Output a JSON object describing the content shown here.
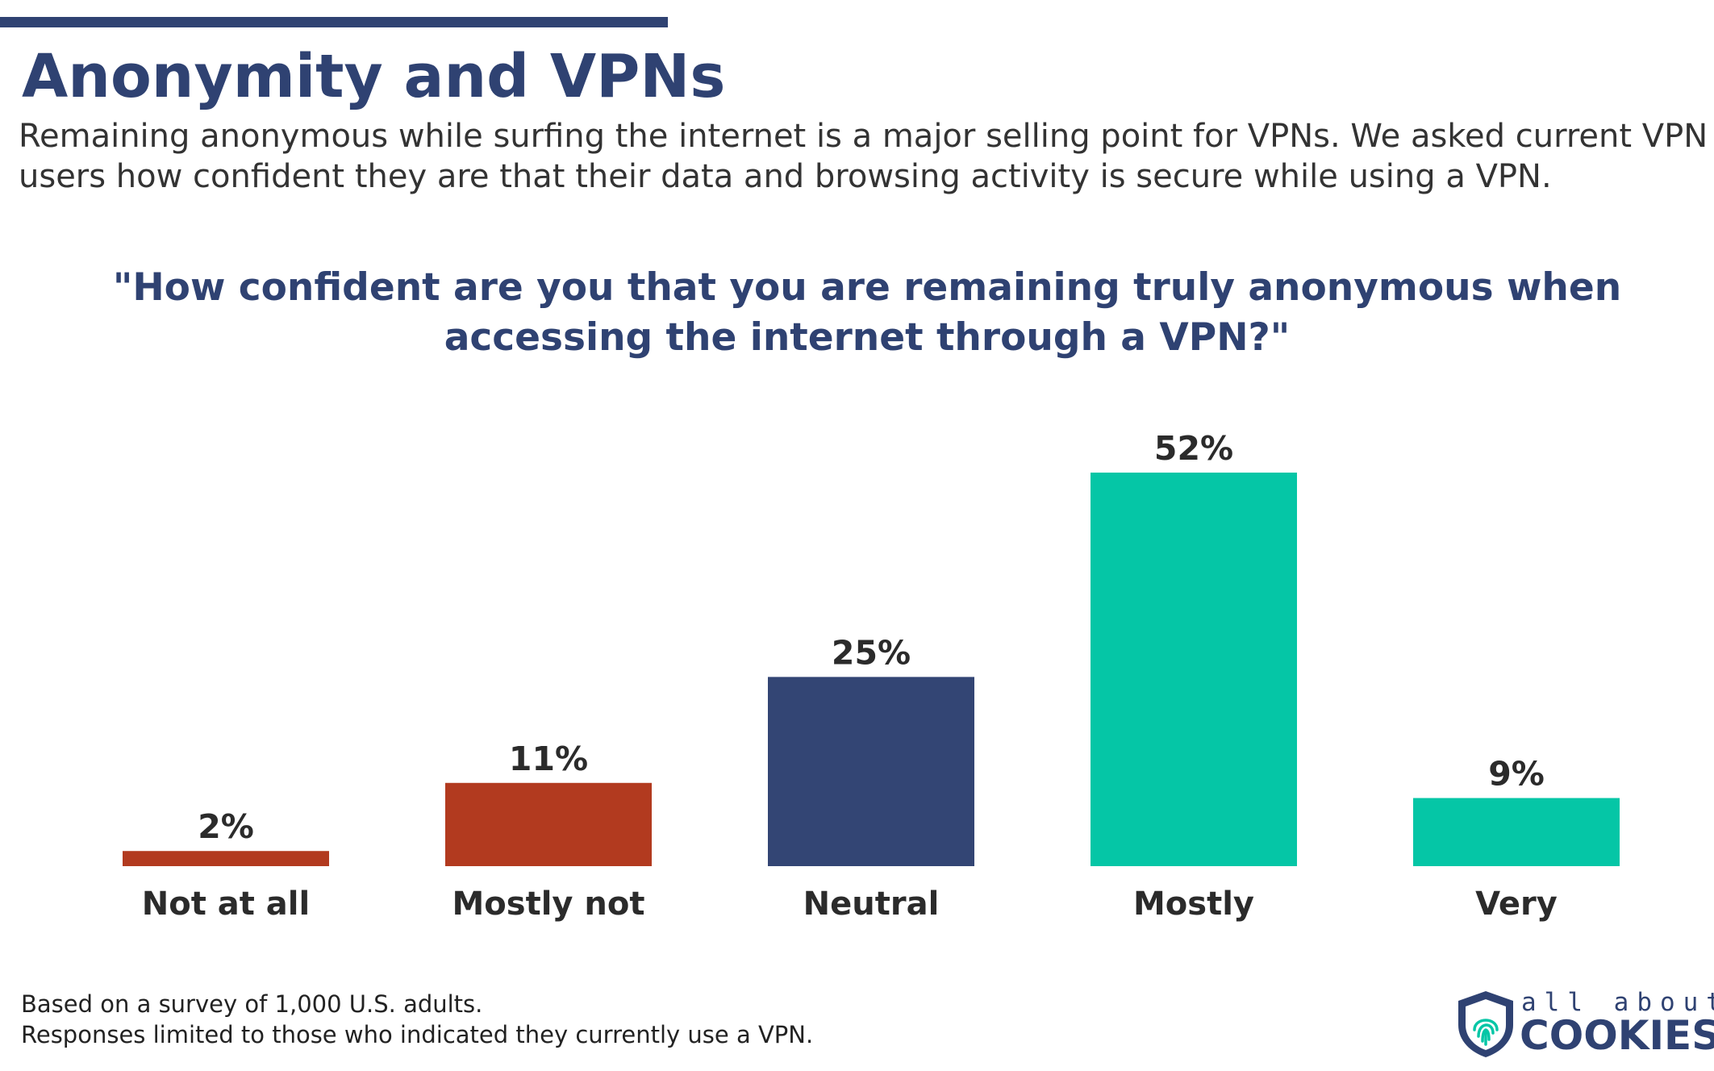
{
  "header": {
    "title": "Anonymity and VPNs",
    "subtitle": "Remaining anonymous while surfing the internet is a major selling point for VPNs. We asked current VPN users how confident they are that their data and browsing activity is secure while using a VPN.",
    "question": "\"How confident are you that you are remaining truly anonymous when accessing the internet through a VPN?\""
  },
  "chart_data": {
    "type": "bar",
    "title": "\"How confident are you that you are remaining truly anonymous when accessing the internet through a VPN?\"",
    "categories": [
      "Not at all",
      "Mostly not",
      "Neutral",
      "Mostly",
      "Very"
    ],
    "values": [
      2,
      11,
      25,
      52,
      9
    ],
    "value_labels": [
      "2%",
      "11%",
      "25%",
      "52%",
      "9%"
    ],
    "colors": [
      "#b23a1f",
      "#b23a1f",
      "#334574",
      "#05c6a6",
      "#05c6a6"
    ],
    "xlabel": "",
    "ylabel": "",
    "ylim": [
      0,
      52
    ],
    "grid": false,
    "legend": "none"
  },
  "footnote": {
    "line1": "Based on a survey of 1,000 U.S. adults.",
    "line2": "Responses limited to those who indicated they currently use a VPN."
  },
  "logo": {
    "top": "all about",
    "bottom": "COOKIES",
    "icon": "shield-fingerprint-icon"
  }
}
